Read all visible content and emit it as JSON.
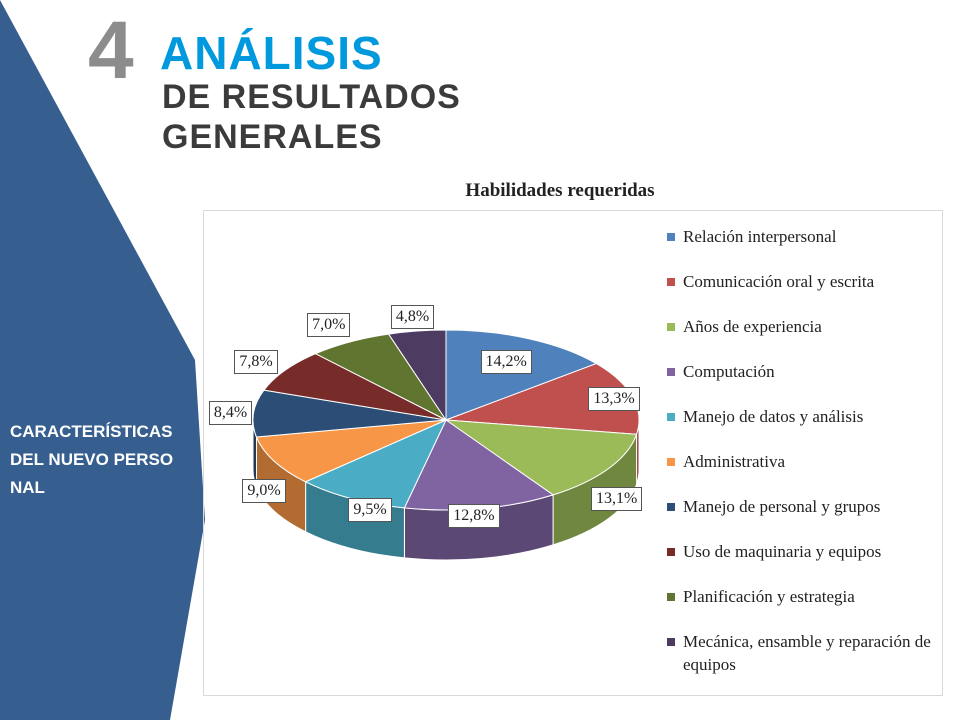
{
  "slide": {
    "number": "4",
    "title_line1": "ANÁLISIS",
    "title_line2": "DE RESULTADOS",
    "title_line3": "GENERALES",
    "sidebar_label": "CARACTERÍSTICAS DEL NUEVO PERSONAL"
  },
  "colors": {
    "sidebar": "#365f8f",
    "number": "#8c8c8c",
    "title_accent": "#0099dd",
    "title_dark": "#3b3b3b"
  },
  "chart_data": {
    "type": "pie",
    "title": "Habilidades requeridas",
    "legend_position": "right",
    "categories": [
      "Relación interpersonal",
      "Comunicación oral y escrita",
      "Años de experiencia",
      "Computación",
      "Manejo de datos y análisis",
      "Administrativa",
      "Manejo de personal y grupos",
      "Uso de maquinaria y equipos",
      "Planificación y estrategia",
      "Mecánica, ensamble y reparación de equipos"
    ],
    "values": [
      14.2,
      13.3,
      13.1,
      12.8,
      9.5,
      9.0,
      8.4,
      7.8,
      7.0,
      4.8
    ],
    "data_labels": [
      "14,2%",
      "13,3%",
      "13,1%",
      "12,8%",
      "9,5%",
      "9,0%",
      "8,4%",
      "7,8%",
      "7,0%",
      "4,8%"
    ],
    "colors": [
      "#4f81bd",
      "#c0504d",
      "#9bbb59",
      "#8064a2",
      "#4bacc6",
      "#f79646",
      "#2c4d75",
      "#772c2a",
      "#5f7530",
      "#4d3b62"
    ]
  }
}
